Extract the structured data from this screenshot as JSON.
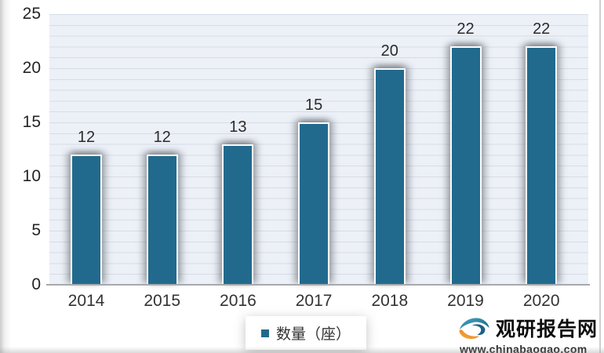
{
  "chart_data": {
    "type": "bar",
    "title": "",
    "categories": [
      "2014",
      "2015",
      "2016",
      "2017",
      "2018",
      "2019",
      "2020"
    ],
    "series": [
      {
        "name": "数量（座）",
        "values": [
          12,
          12,
          13,
          15,
          20,
          22,
          22
        ]
      }
    ],
    "xlabel": "",
    "ylabel": "",
    "ylim": [
      0,
      25
    ],
    "yticks": [
      0,
      5,
      10,
      15,
      20,
      25
    ],
    "grid": "horizontal minor gridlines every 1 unit",
    "legend_position": "bottom",
    "data_labels": true,
    "bar_color": "#226a8d",
    "plot_background": "#ecf0f7",
    "gridline_color": "#d6dce8",
    "axis_line_color": "#a6aaae"
  },
  "legend": {
    "items": [
      {
        "label": "数量（座）",
        "color": "#226a8d"
      }
    ]
  },
  "watermark": {
    "site_name": "观研报告网",
    "site_url": "www.chinabaogao.com",
    "icon": "swirl-eye-logo",
    "icon_colors": {
      "top": "#2b85ac",
      "bottom": "#ee8a1f",
      "inner": "#1c6286"
    }
  }
}
